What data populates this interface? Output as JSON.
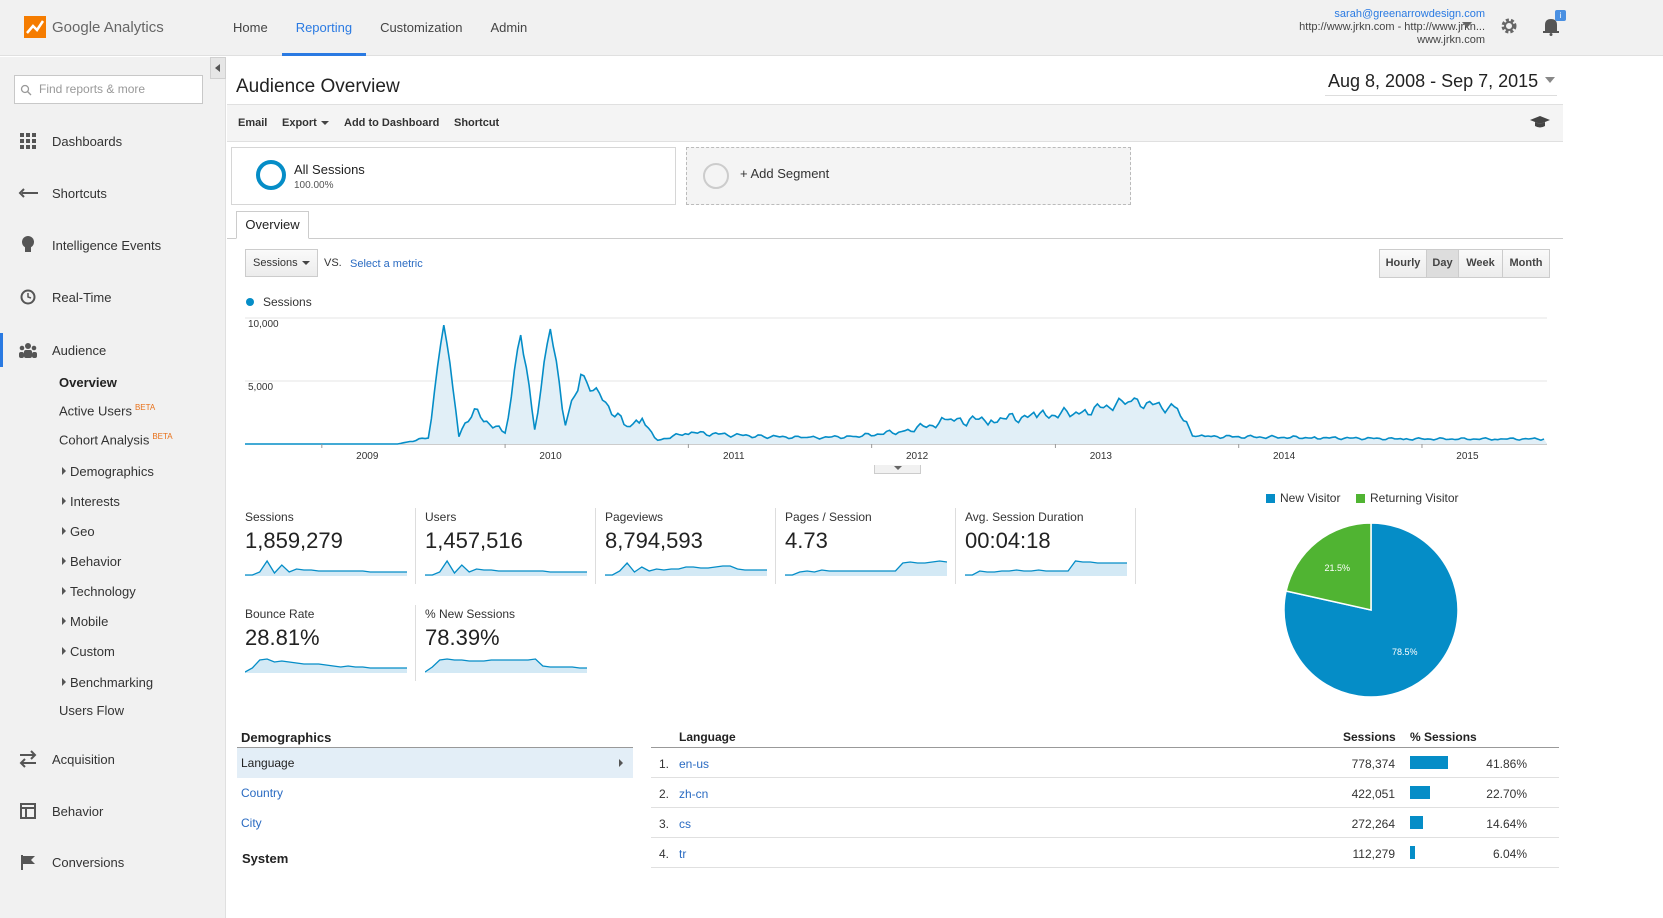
{
  "app": {
    "name": "Google Analytics"
  },
  "nav": {
    "home": "Home",
    "reporting": "Reporting",
    "customization": "Customization",
    "admin": "Admin"
  },
  "account": {
    "email": "sarah@greenarrowdesign.com",
    "property": "http://www.jrkn.com - http://www.jrkn...",
    "view": "www.jrkn.com"
  },
  "sidebar": {
    "search_placeholder": "Find reports & more",
    "dashboards": "Dashboards",
    "shortcuts": "Shortcuts",
    "intelligence": "Intelligence Events",
    "realtime": "Real-Time",
    "audience": "Audience",
    "overview": "Overview",
    "active_users": "Active Users",
    "cohort": "Cohort Analysis",
    "beta": "BETA",
    "demographics": "Demographics",
    "interests": "Interests",
    "geo": "Geo",
    "behavior_sub": "Behavior",
    "technology": "Technology",
    "mobile": "Mobile",
    "custom": "Custom",
    "benchmarking": "Benchmarking",
    "users_flow": "Users Flow",
    "acquisition": "Acquisition",
    "behavior": "Behavior",
    "conversions": "Conversions"
  },
  "page": {
    "title": "Audience Overview",
    "date_range": "Aug 8, 2008 - Sep 7, 2015"
  },
  "toolbar": {
    "email": "Email",
    "export": "Export",
    "add_dashboard": "Add to Dashboard",
    "shortcut": "Shortcut"
  },
  "segment": {
    "name": "All Sessions",
    "pct": "100.00%",
    "add": "+ Add Segment"
  },
  "tab": "Overview",
  "metric": {
    "selected": "Sessions",
    "vs": "VS.",
    "select": "Select a metric"
  },
  "periods": [
    "Hourly",
    "Day",
    "Week",
    "Month"
  ],
  "active_period": "Day",
  "colors": {
    "series": "#058dc7",
    "returning": "#50b432",
    "accent": "#2a7ae2"
  },
  "chart_data": [
    {
      "type": "area",
      "title": "",
      "series": [
        {
          "name": "Sessions",
          "x": [
            "2008-08",
            "2009-01",
            "2009-06",
            "2009-08",
            "2009-09",
            "2009-10",
            "2009-11",
            "2010-01",
            "2010-02",
            "2010-03",
            "2010-04",
            "2010-05",
            "2010-06",
            "2010-09",
            "2010-10",
            "2010-11",
            "2011-01",
            "2011-06",
            "2011-09",
            "2011-12",
            "2012-03",
            "2012-06",
            "2012-09",
            "2012-12",
            "2013-03",
            "2013-06",
            "2013-09",
            "2013-10",
            "2013-11",
            "2014-06",
            "2014-12",
            "2015-06",
            "2015-09"
          ],
          "values": [
            0,
            0,
            0,
            500,
            9900,
            700,
            2500,
            800,
            9000,
            1200,
            9300,
            1500,
            5500,
            1300,
            1800,
            300,
            900,
            600,
            500,
            600,
            1000,
            1800,
            2000,
            2200,
            2600,
            3400,
            2800,
            600,
            600,
            500,
            400,
            400,
            400
          ]
        }
      ],
      "yticks": [
        "10,000",
        "5,000"
      ],
      "ylim": [
        0,
        10000
      ],
      "xticks": [
        "2009",
        "2010",
        "2011",
        "2012",
        "2013",
        "2014",
        "2015"
      ]
    },
    {
      "type": "pie",
      "series": [
        {
          "name": "New Visitor",
          "value": 78.5
        },
        {
          "name": "Returning Visitor",
          "value": 21.5
        }
      ],
      "labels": [
        "78.5%",
        "21.5%"
      ],
      "legend_placement": "top"
    }
  ],
  "metrics": [
    {
      "label": "Sessions",
      "value": "1,859,279"
    },
    {
      "label": "Users",
      "value": "1,457,516"
    },
    {
      "label": "Pageviews",
      "value": "8,794,593"
    },
    {
      "label": "Pages / Session",
      "value": "4.73"
    },
    {
      "label": "Avg. Session Duration",
      "value": "00:04:18"
    },
    {
      "label": "Bounce Rate",
      "value": "28.81%"
    },
    {
      "label": "% New Sessions",
      "value": "78.39%"
    }
  ],
  "demographics": {
    "title": "Demographics",
    "rows": [
      "Language",
      "Country",
      "City"
    ],
    "system": "System"
  },
  "table": {
    "headers": {
      "language": "Language",
      "sessions": "Sessions",
      "pct": "% Sessions"
    },
    "rows": [
      {
        "n": "1.",
        "lang": "en-us",
        "sessions": "778,374",
        "pct": "41.86%",
        "share": 41.86
      },
      {
        "n": "2.",
        "lang": "zh-cn",
        "sessions": "422,051",
        "pct": "22.70%",
        "share": 22.7
      },
      {
        "n": "3.",
        "lang": "cs",
        "sessions": "272,264",
        "pct": "14.64%",
        "share": 14.64
      },
      {
        "n": "4.",
        "lang": "tr",
        "sessions": "112,279",
        "pct": "6.04%",
        "share": 6.04
      }
    ]
  }
}
